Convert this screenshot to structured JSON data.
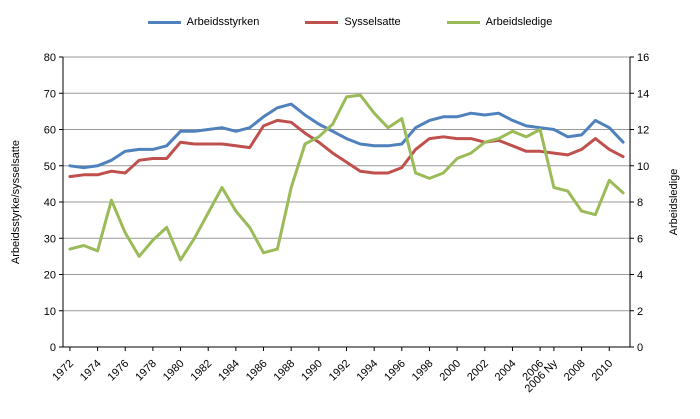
{
  "chart_data": {
    "type": "line",
    "title": "",
    "ylabel_left": "Arbeidsstyrke/sysselsatte",
    "ylabel_right": "Arbeidsledige",
    "legend_position": "top",
    "grid": true,
    "colors": {
      "grid": "#999999",
      "axis": "#000000",
      "text": "#000000",
      "background": "#ffffff"
    },
    "y_left": {
      "min": 0,
      "max": 80,
      "step": 10,
      "ticks": [
        "0",
        "10",
        "20",
        "30",
        "40",
        "50",
        "60",
        "70",
        "80"
      ]
    },
    "y_right": {
      "min": 0,
      "max": 16,
      "step": 2,
      "ticks": [
        "0",
        "2",
        "4",
        "6",
        "8",
        "10",
        "12",
        "14",
        "16"
      ]
    },
    "x_categories": [
      "1972",
      "1973",
      "1974",
      "1975",
      "1976",
      "1977",
      "1978",
      "1979",
      "1980",
      "1981",
      "1982",
      "1983",
      "1984",
      "1985",
      "1986",
      "1987",
      "1988",
      "1989",
      "1990",
      "1991",
      "1992",
      "1993",
      "1994",
      "1995",
      "1996",
      "1997",
      "1998",
      "1999",
      "2000",
      "2001",
      "2002",
      "2003",
      "2004",
      "2005",
      "2006",
      "2006 Ny",
      "2007",
      "2008",
      "2009",
      "2010",
      "2011"
    ],
    "x_ticks": [
      {
        "i": 0,
        "label": "1972"
      },
      {
        "i": 2,
        "label": "1974"
      },
      {
        "i": 4,
        "label": "1976"
      },
      {
        "i": 6,
        "label": "1978"
      },
      {
        "i": 8,
        "label": "1980"
      },
      {
        "i": 10,
        "label": "1982"
      },
      {
        "i": 12,
        "label": "1984"
      },
      {
        "i": 14,
        "label": "1986"
      },
      {
        "i": 16,
        "label": "1988"
      },
      {
        "i": 18,
        "label": "1990"
      },
      {
        "i": 20,
        "label": "1992"
      },
      {
        "i": 22,
        "label": "1994"
      },
      {
        "i": 24,
        "label": "1996"
      },
      {
        "i": 26,
        "label": "1998"
      },
      {
        "i": 28,
        "label": "2000"
      },
      {
        "i": 30,
        "label": "2002"
      },
      {
        "i": 32,
        "label": "2004"
      },
      {
        "i": 34,
        "label": "2006"
      },
      {
        "i": 35,
        "label": "2006 Ny"
      },
      {
        "i": 37,
        "label": "2008"
      },
      {
        "i": 39,
        "label": "2010"
      }
    ],
    "series": [
      {
        "name": "Arbeidsstyrken",
        "axis": "left",
        "color": "#4F81BD",
        "values": [
          50,
          49.5,
          50,
          51.5,
          54,
          54.5,
          54.5,
          55.5,
          59.5,
          59.5,
          60,
          60.5,
          59.5,
          60.5,
          63.5,
          66,
          67,
          64,
          61.5,
          59.5,
          57.5,
          56,
          55.5,
          55.5,
          56,
          60.5,
          62.5,
          63.5,
          63.5,
          64.5,
          64,
          64.5,
          62.5,
          61,
          60.5,
          60,
          58,
          58.5,
          62.5,
          60.5,
          56.5
        ]
      },
      {
        "name": "Sysselsatte",
        "axis": "left",
        "color": "#C0504D",
        "values": [
          47,
          47.5,
          47.5,
          48.5,
          48,
          51.5,
          52,
          52,
          56.5,
          56,
          56,
          56,
          55.5,
          55,
          61,
          62.5,
          62,
          59,
          56.5,
          53.5,
          51,
          48.5,
          48,
          48,
          49.5,
          54.5,
          57.5,
          58,
          57.5,
          57.5,
          56.5,
          57,
          55.5,
          54,
          54,
          53.5,
          53,
          54.5,
          57.5,
          54.5,
          52.5
        ]
      },
      {
        "name": "Arbeidsledige",
        "axis": "right",
        "color": "#9BBB59",
        "values": [
          5.4,
          5.6,
          5.3,
          8.1,
          6.3,
          5.0,
          5.9,
          6.6,
          4.8,
          6.0,
          7.4,
          8.8,
          7.5,
          6.6,
          5.2,
          5.4,
          8.8,
          11.2,
          11.6,
          12.3,
          13.8,
          13.9,
          12.9,
          12.1,
          12.6,
          9.6,
          9.3,
          9.6,
          10.4,
          10.7,
          11.3,
          11.5,
          11.9,
          11.6,
          12.0,
          8.8,
          8.6,
          7.5,
          7.3,
          9.2,
          8.5
        ]
      }
    ]
  }
}
